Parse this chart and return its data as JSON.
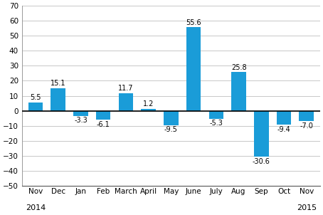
{
  "categories": [
    "Nov",
    "Dec",
    "Jan",
    "Feb",
    "March",
    "April",
    "May",
    "June",
    "July",
    "Aug",
    "Sep",
    "Oct",
    "Nov"
  ],
  "values": [
    5.5,
    15.1,
    -3.3,
    -6.1,
    11.7,
    1.2,
    -9.5,
    55.6,
    -5.3,
    25.8,
    -30.6,
    -9.4,
    -7.0
  ],
  "bar_color": "#1a9cd8",
  "ylim": [
    -50,
    70
  ],
  "yticks": [
    -50,
    -40,
    -30,
    -20,
    -10,
    0,
    10,
    20,
    30,
    40,
    50,
    60,
    70
  ],
  "label_fontsize": 7.5,
  "value_fontsize": 7.0,
  "axis_fontsize": 7.5,
  "year_fontsize": 8.0,
  "background_color": "#ffffff",
  "grid_color": "#c8c8c8",
  "bar_width": 0.65
}
